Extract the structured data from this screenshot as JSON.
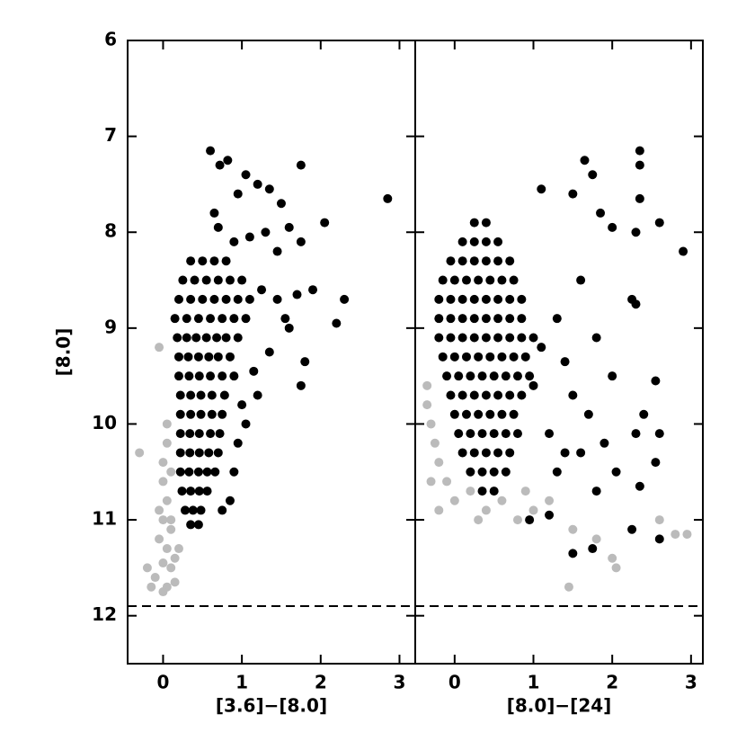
{
  "chart_data": [
    {
      "type": "scatter",
      "xlabel": "[3.6]−[8.0]",
      "ylabel": "[8.0]",
      "xlim": [
        -0.45,
        3.2
      ],
      "ylim": [
        6,
        12.5
      ],
      "y_inverted": true,
      "xticks": [
        0,
        1,
        2,
        3
      ],
      "yticks": [
        6,
        7,
        8,
        9,
        10,
        11,
        12
      ],
      "ytick_labels": true,
      "hline": 11.9,
      "series": [
        {
          "color": "#bbbbbb",
          "x": [
            -0.3,
            -0.05,
            0.0,
            0.05,
            0.0,
            0.05,
            0.0,
            0.1,
            -0.05,
            0.05,
            0.0,
            0.1,
            -0.1,
            0.05,
            -0.15,
            0.15,
            0.1,
            0.05,
            0.1,
            -0.05,
            0.2,
            -0.2,
            0.0,
            0.15
          ],
          "y": [
            10.3,
            9.2,
            10.4,
            10.0,
            10.6,
            10.8,
            11.0,
            11.1,
            11.2,
            11.3,
            11.45,
            11.5,
            11.6,
            11.7,
            11.7,
            11.4,
            11.0,
            10.2,
            10.5,
            10.9,
            11.3,
            11.5,
            11.75,
            11.65
          ]
        },
        {
          "color": "#000000",
          "x": [
            0.6,
            0.72,
            0.82,
            1.05,
            1.75,
            2.85,
            1.2,
            0.95,
            0.65,
            0.7,
            1.35,
            1.5,
            1.6,
            2.05,
            1.3,
            1.45,
            1.75,
            1.1,
            0.9,
            2.3,
            2.2,
            1.8,
            1.75,
            1.35,
            1.15,
            1.0,
            1.05,
            0.95,
            0.9,
            1.55,
            1.7,
            1.9,
            1.45,
            1.25,
            1.6,
            1.2,
            0.85,
            0.75,
            0.35,
            0.5,
            0.65,
            0.8,
            0.25,
            0.4,
            0.55,
            0.7,
            0.85,
            1.0,
            0.2,
            0.35,
            0.5,
            0.65,
            0.8,
            0.95,
            1.1,
            0.15,
            0.3,
            0.45,
            0.6,
            0.75,
            0.9,
            1.05,
            0.18,
            0.3,
            0.42,
            0.55,
            0.68,
            0.8,
            0.95,
            0.2,
            0.32,
            0.45,
            0.58,
            0.7,
            0.85,
            0.2,
            0.33,
            0.46,
            0.6,
            0.75,
            0.9,
            0.22,
            0.35,
            0.48,
            0.62,
            0.78,
            0.22,
            0.35,
            0.48,
            0.62,
            0.75,
            0.22,
            0.34,
            0.46,
            0.6,
            0.72,
            0.22,
            0.34,
            0.46,
            0.58,
            0.7,
            0.22,
            0.33,
            0.45,
            0.56,
            0.66,
            0.24,
            0.35,
            0.46,
            0.56,
            0.28,
            0.38,
            0.48,
            0.35,
            0.45
          ],
          "y": [
            7.15,
            7.3,
            7.25,
            7.4,
            7.3,
            7.65,
            7.5,
            7.6,
            7.8,
            7.95,
            7.55,
            7.7,
            7.95,
            7.9,
            8.0,
            8.2,
            8.1,
            8.05,
            8.1,
            8.7,
            8.95,
            9.35,
            9.6,
            9.25,
            9.45,
            9.8,
            10.0,
            10.2,
            10.5,
            8.9,
            8.65,
            8.6,
            8.7,
            8.6,
            9.0,
            9.7,
            10.8,
            10.9,
            8.3,
            8.3,
            8.3,
            8.3,
            8.5,
            8.5,
            8.5,
            8.5,
            8.5,
            8.5,
            8.7,
            8.7,
            8.7,
            8.7,
            8.7,
            8.7,
            8.7,
            8.9,
            8.9,
            8.9,
            8.9,
            8.9,
            8.9,
            8.9,
            9.1,
            9.1,
            9.1,
            9.1,
            9.1,
            9.1,
            9.1,
            9.3,
            9.3,
            9.3,
            9.3,
            9.3,
            9.3,
            9.5,
            9.5,
            9.5,
            9.5,
            9.5,
            9.5,
            9.7,
            9.7,
            9.7,
            9.7,
            9.7,
            9.9,
            9.9,
            9.9,
            9.9,
            9.9,
            10.1,
            10.1,
            10.1,
            10.1,
            10.1,
            10.3,
            10.3,
            10.3,
            10.3,
            10.3,
            10.5,
            10.5,
            10.5,
            10.5,
            10.5,
            10.7,
            10.7,
            10.7,
            10.7,
            10.9,
            10.9,
            10.9,
            11.05,
            11.05
          ]
        }
      ]
    },
    {
      "type": "scatter",
      "xlabel": "[8.0]−[24]",
      "xlim": [
        -0.5,
        3.15
      ],
      "ylim": [
        6,
        12.5
      ],
      "y_inverted": true,
      "xticks": [
        0,
        1,
        2,
        3
      ],
      "yticks": [
        6,
        7,
        8,
        9,
        10,
        11,
        12
      ],
      "ytick_labels": false,
      "hline": 11.9,
      "series": [
        {
          "color": "#bbbbbb",
          "x": [
            -0.35,
            -0.3,
            -0.25,
            -0.2,
            -0.1,
            -0.3,
            0.0,
            0.2,
            0.4,
            0.6,
            0.8,
            1.0,
            1.2,
            1.5,
            1.8,
            2.0,
            2.05,
            1.45,
            2.6,
            2.8,
            2.95,
            -0.2,
            0.3,
            -0.35,
            0.9
          ],
          "y": [
            9.8,
            10.0,
            10.2,
            10.4,
            10.6,
            10.6,
            10.8,
            10.7,
            10.9,
            10.8,
            11.0,
            10.9,
            10.8,
            11.1,
            11.2,
            11.4,
            11.5,
            11.7,
            11.0,
            11.15,
            11.15,
            10.9,
            11.0,
            9.6,
            10.7
          ]
        },
        {
          "color": "#000000",
          "x": [
            2.35,
            2.35,
            1.65,
            1.75,
            2.35,
            1.85,
            1.1,
            2.9,
            2.6,
            2.3,
            2.0,
            1.5,
            2.25,
            2.3,
            2.55,
            2.4,
            2.6,
            2.55,
            2.3,
            2.05,
            2.35,
            2.6,
            2.25,
            1.75,
            1.5,
            1.2,
            0.95,
            1.3,
            1.6,
            1.9,
            1.5,
            1.7,
            1.4,
            1.8,
            1.6,
            1.3,
            1.1,
            1.0,
            1.2,
            1.8,
            2.0,
            1.4,
            0.25,
            0.4,
            0.1,
            0.25,
            0.4,
            0.55,
            -0.05,
            0.1,
            0.25,
            0.4,
            0.55,
            0.7,
            -0.15,
            0.0,
            0.15,
            0.3,
            0.45,
            0.6,
            0.75,
            -0.2,
            -0.05,
            0.1,
            0.25,
            0.4,
            0.55,
            0.7,
            0.85,
            -0.2,
            -0.05,
            0.1,
            0.25,
            0.4,
            0.55,
            0.7,
            0.85,
            -0.2,
            -0.05,
            0.1,
            0.25,
            0.4,
            0.55,
            0.7,
            0.85,
            1.0,
            -0.15,
            0.0,
            0.15,
            0.3,
            0.45,
            0.6,
            0.75,
            0.9,
            -0.1,
            0.05,
            0.2,
            0.35,
            0.5,
            0.65,
            0.8,
            0.95,
            -0.05,
            0.1,
            0.25,
            0.4,
            0.55,
            0.7,
            0.85,
            0.0,
            0.15,
            0.3,
            0.45,
            0.6,
            0.75,
            0.05,
            0.2,
            0.35,
            0.5,
            0.65,
            0.8,
            0.1,
            0.25,
            0.4,
            0.55,
            0.7,
            0.2,
            0.35,
            0.5,
            0.65,
            0.35,
            0.5
          ],
          "y": [
            7.15,
            7.3,
            7.25,
            7.4,
            7.65,
            7.8,
            7.55,
            8.2,
            7.9,
            8.0,
            7.95,
            7.6,
            8.7,
            8.75,
            9.55,
            9.9,
            10.1,
            10.4,
            10.1,
            10.5,
            10.65,
            11.2,
            11.1,
            11.3,
            11.35,
            10.95,
            11.0,
            10.5,
            10.3,
            10.2,
            9.7,
            9.9,
            9.35,
            9.1,
            8.5,
            8.9,
            9.2,
            9.6,
            10.1,
            10.7,
            9.5,
            10.3,
            7.9,
            7.9,
            8.1,
            8.1,
            8.1,
            8.1,
            8.3,
            8.3,
            8.3,
            8.3,
            8.3,
            8.3,
            8.5,
            8.5,
            8.5,
            8.5,
            8.5,
            8.5,
            8.5,
            8.7,
            8.7,
            8.7,
            8.7,
            8.7,
            8.7,
            8.7,
            8.7,
            8.9,
            8.9,
            8.9,
            8.9,
            8.9,
            8.9,
            8.9,
            8.9,
            9.1,
            9.1,
            9.1,
            9.1,
            9.1,
            9.1,
            9.1,
            9.1,
            9.1,
            9.3,
            9.3,
            9.3,
            9.3,
            9.3,
            9.3,
            9.3,
            9.3,
            9.5,
            9.5,
            9.5,
            9.5,
            9.5,
            9.5,
            9.5,
            9.5,
            9.7,
            9.7,
            9.7,
            9.7,
            9.7,
            9.7,
            9.7,
            9.9,
            9.9,
            9.9,
            9.9,
            9.9,
            9.9,
            10.1,
            10.1,
            10.1,
            10.1,
            10.1,
            10.1,
            10.3,
            10.3,
            10.3,
            10.3,
            10.3,
            10.5,
            10.5,
            10.5,
            10.5,
            10.7,
            10.7
          ]
        }
      ]
    }
  ]
}
